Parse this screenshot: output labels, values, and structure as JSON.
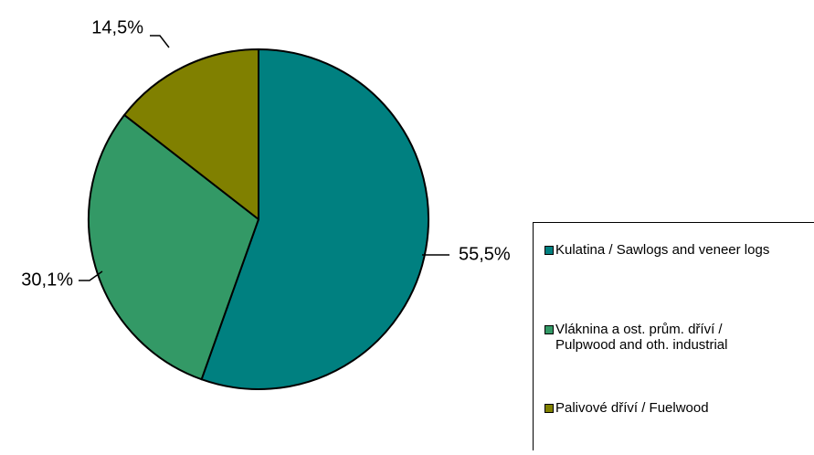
{
  "chart_data": {
    "type": "pie",
    "title": "",
    "slices": [
      {
        "label": "Kulatina / Sawlogs and veneer logs",
        "lines": [
          "Kulatina / Sawlogs and veneer logs"
        ],
        "value": 55.5,
        "value_label": "55,5%",
        "color": "#008080"
      },
      {
        "label": "Vláknina a ost. prům. dříví / Pulpwood and oth. industrial",
        "lines": [
          "Vláknina a ost. prům. dříví /",
          "Pulpwood and oth. industrial"
        ],
        "value": 30.1,
        "value_label": "30,1%",
        "color": "#339966"
      },
      {
        "label": "Palivové dříví / Fuelwood",
        "lines": [
          "Palivové dříví / Fuelwood"
        ],
        "value": 14.5,
        "value_label": "14,5%",
        "color": "#808000"
      }
    ],
    "start_angle": "12 o'clock",
    "direction": "clockwise",
    "legend_position": "right"
  }
}
